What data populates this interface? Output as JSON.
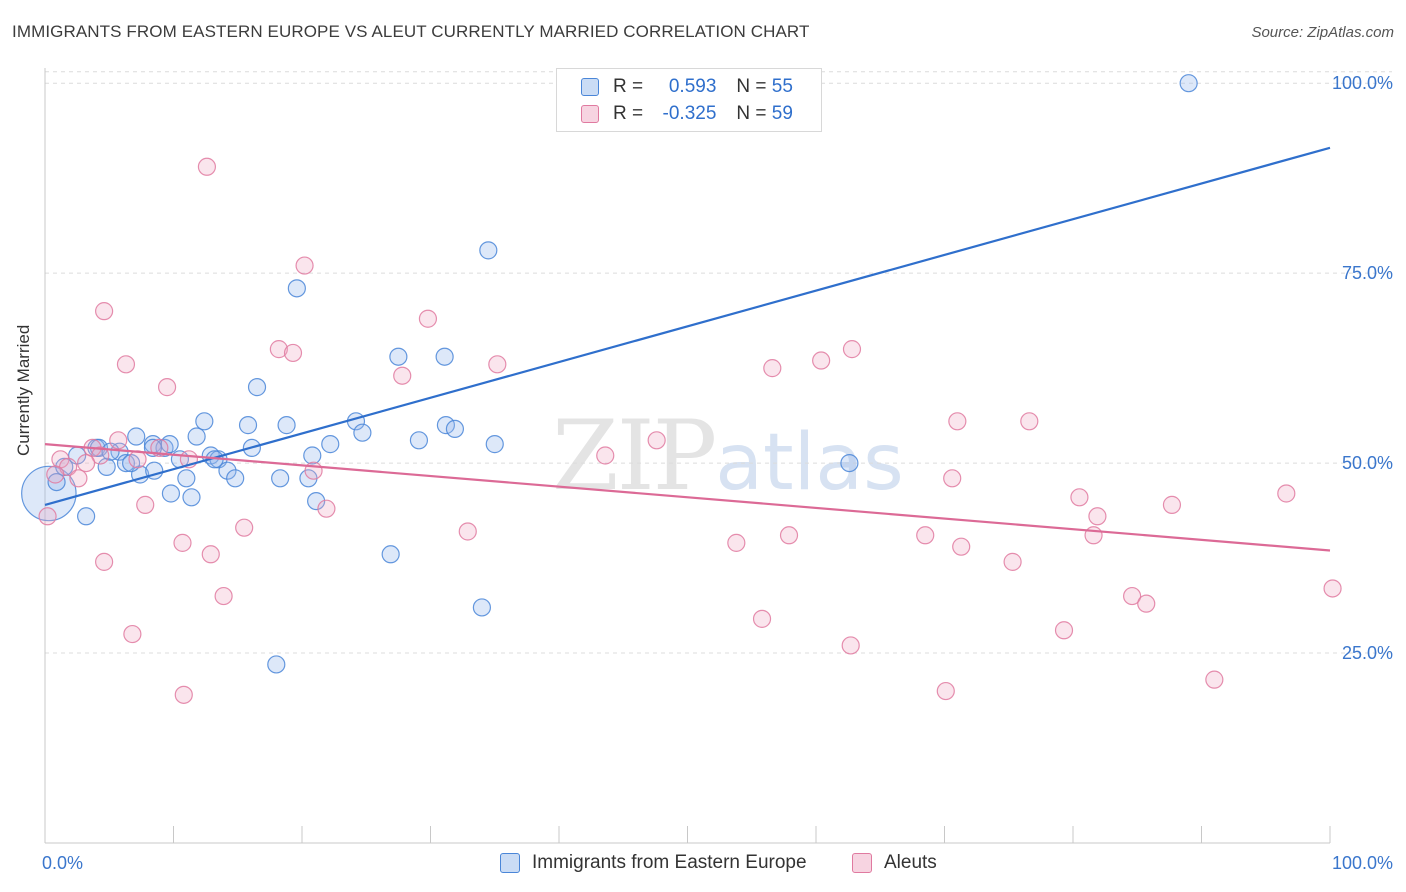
{
  "title": "IMMIGRANTS FROM EASTERN EUROPE VS ALEUT CURRENTLY MARRIED CORRELATION CHART",
  "source": "Source: ZipAtlas.com",
  "watermark": {
    "zip": "ZIP",
    "atlas": "atlas"
  },
  "legend_top": {
    "rows": [
      {
        "r_label": "R =",
        "r_value": "0.593",
        "n_label": "N =",
        "n_value": "55"
      },
      {
        "r_label": "R =",
        "r_value": "-0.325",
        "n_label": "N =",
        "n_value": "59"
      }
    ]
  },
  "legend_bottom": [
    "Immigrants from Eastern Europe",
    "Aleuts"
  ],
  "colors": {
    "blue": "#4a86d8",
    "blue_fill": "rgba(150,185,235,0.32)",
    "blue_line": "#2f6fcc",
    "pink": "#e07aa0",
    "pink_fill": "rgba(240,170,195,0.30)",
    "pink_line": "#dc6a96",
    "grid": "#dcdcdc",
    "tick_text": "#3a76cc"
  },
  "chart_data": {
    "type": "scatter",
    "title": "IMMIGRANTS FROM EASTERN EUROPE VS ALEUT CURRENTLY MARRIED CORRELATION CHART",
    "xlabel": "",
    "ylabel": "Currently Married",
    "xlim": [
      0,
      100
    ],
    "ylim": [
      0,
      102
    ],
    "x_tick_labels": [
      "0.0%",
      "100.0%"
    ],
    "y_ticks": [
      25,
      50,
      75,
      100
    ],
    "y_tick_labels": [
      "25.0%",
      "50.0%",
      "75.0%",
      "100.0%"
    ],
    "grid": true,
    "legend_position": "top-center",
    "series": [
      {
        "name": "Immigrants from Eastern Europe",
        "r": 0.593,
        "n": 55,
        "trend": {
          "x0": 0,
          "y0": 44.5,
          "x1": 100,
          "y1": 91.5
        },
        "points": [
          [
            0.3,
            46,
            3.2
          ],
          [
            0.9,
            47.5,
            1
          ],
          [
            1.5,
            49.5,
            1
          ],
          [
            2.5,
            51,
            1
          ],
          [
            3.2,
            43,
            1
          ],
          [
            4.0,
            52,
            1
          ],
          [
            4.8,
            49.5,
            1
          ],
          [
            5.8,
            51.5,
            1
          ],
          [
            6.3,
            50,
            1
          ],
          [
            7.1,
            53.5,
            1
          ],
          [
            7.4,
            48.5,
            1
          ],
          [
            8.4,
            52.5,
            1
          ],
          [
            8.5,
            49,
            1
          ],
          [
            9.3,
            52,
            1
          ],
          [
            9.7,
            52.5,
            1
          ],
          [
            9.8,
            46,
            1
          ],
          [
            10.5,
            50.5,
            1
          ],
          [
            11.0,
            48,
            1
          ],
          [
            11.4,
            45.5,
            1
          ],
          [
            11.8,
            53.5,
            1
          ],
          [
            12.4,
            55.5,
            1
          ],
          [
            12.9,
            51,
            1
          ],
          [
            13.5,
            50.5,
            1
          ],
          [
            14.2,
            49,
            1
          ],
          [
            14.8,
            48,
            1
          ],
          [
            15.8,
            55,
            1
          ],
          [
            16.1,
            52,
            1
          ],
          [
            16.5,
            60,
            1
          ],
          [
            18.0,
            23.5,
            1
          ],
          [
            18.3,
            48,
            1
          ],
          [
            18.8,
            55,
            1
          ],
          [
            19.6,
            73,
            1
          ],
          [
            20.5,
            48,
            1
          ],
          [
            20.8,
            51,
            1
          ],
          [
            21.1,
            45,
            1
          ],
          [
            22.2,
            52.5,
            1
          ],
          [
            24.2,
            55.5,
            1
          ],
          [
            24.7,
            54,
            1
          ],
          [
            26.9,
            38,
            1
          ],
          [
            27.5,
            64,
            1
          ],
          [
            29.1,
            53,
            1
          ],
          [
            31.1,
            64,
            1
          ],
          [
            31.2,
            55,
            1
          ],
          [
            31.9,
            54.5,
            1
          ],
          [
            34.0,
            31,
            1
          ],
          [
            34.5,
            78,
            1
          ],
          [
            35.0,
            52.5,
            1
          ],
          [
            47.5,
            100,
            1
          ],
          [
            62.6,
            50,
            1
          ],
          [
            89.0,
            100,
            1
          ],
          [
            4.2,
            52,
            1
          ],
          [
            8.4,
            52,
            1
          ],
          [
            13.2,
            50.5,
            1
          ],
          [
            6.7,
            50,
            1
          ],
          [
            5.1,
            51.5,
            1
          ]
        ]
      },
      {
        "name": "Aleuts",
        "r": -0.325,
        "n": 59,
        "trend": {
          "x0": 0,
          "y0": 52.5,
          "x1": 100,
          "y1": 38.5
        },
        "points": [
          [
            0.2,
            43,
            1
          ],
          [
            1.2,
            50.5,
            1
          ],
          [
            1.8,
            49.5,
            1
          ],
          [
            2.6,
            48,
            1
          ],
          [
            3.7,
            52,
            1
          ],
          [
            4.3,
            51,
            1
          ],
          [
            4.6,
            37,
            1
          ],
          [
            4.6,
            70,
            1
          ],
          [
            5.7,
            53,
            1
          ],
          [
            6.3,
            63,
            1
          ],
          [
            6.8,
            27.5,
            1
          ],
          [
            7.2,
            50.5,
            1
          ],
          [
            7.8,
            44.5,
            1
          ],
          [
            8.9,
            52,
            1
          ],
          [
            9.5,
            60,
            1
          ],
          [
            10.7,
            39.5,
            1
          ],
          [
            10.8,
            19.5,
            1
          ],
          [
            11.2,
            50.5,
            1
          ],
          [
            12.6,
            89,
            1
          ],
          [
            12.9,
            38,
            1
          ],
          [
            13.9,
            32.5,
            1
          ],
          [
            15.5,
            41.5,
            1
          ],
          [
            18.2,
            65,
            1
          ],
          [
            19.3,
            64.5,
            1
          ],
          [
            20.2,
            76,
            1
          ],
          [
            20.9,
            49,
            1
          ],
          [
            21.9,
            44,
            1
          ],
          [
            27.8,
            61.5,
            1
          ],
          [
            29.8,
            69,
            1
          ],
          [
            32.9,
            41,
            1
          ],
          [
            35.2,
            63,
            1
          ],
          [
            43.6,
            51,
            1
          ],
          [
            47.6,
            53,
            1
          ],
          [
            53.8,
            39.5,
            1
          ],
          [
            55.8,
            29.5,
            1
          ],
          [
            56.6,
            62.5,
            1
          ],
          [
            57.9,
            40.5,
            1
          ],
          [
            60.4,
            63.5,
            1
          ],
          [
            62.7,
            26,
            1
          ],
          [
            62.8,
            65,
            1
          ],
          [
            68.5,
            40.5,
            1
          ],
          [
            70.1,
            20,
            1
          ],
          [
            70.6,
            48,
            1
          ],
          [
            71.0,
            55.5,
            1
          ],
          [
            71.3,
            39,
            1
          ],
          [
            75.3,
            37,
            1
          ],
          [
            76.6,
            55.5,
            1
          ],
          [
            79.3,
            28,
            1
          ],
          [
            80.5,
            45.5,
            1
          ],
          [
            81.6,
            40.5,
            1
          ],
          [
            81.9,
            43,
            1
          ],
          [
            84.6,
            32.5,
            1
          ],
          [
            85.7,
            31.5,
            1
          ],
          [
            87.7,
            44.5,
            1
          ],
          [
            91.0,
            21.5,
            1
          ],
          [
            96.6,
            46,
            1
          ],
          [
            100.2,
            33.5,
            1
          ],
          [
            0.8,
            48.5,
            1
          ],
          [
            3.2,
            50,
            1
          ]
        ]
      }
    ]
  }
}
